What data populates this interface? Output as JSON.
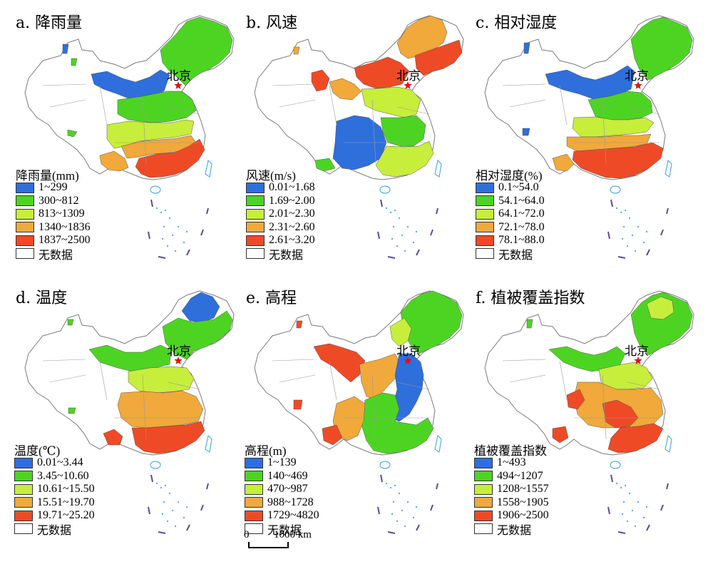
{
  "colors": {
    "blue": "#2e6fdc",
    "green": "#4dd423",
    "yellowgreen": "#c7ee3b",
    "orange": "#f0a93a",
    "red": "#ef4a26",
    "nodata": "#ffffff",
    "border": "#7a7a7a",
    "sea_islands": "#5ab0e8",
    "star": "#e01010"
  },
  "capital": {
    "label": "北京",
    "icon": "star-icon"
  },
  "panels": [
    {
      "title": "a. 降雨量",
      "legend_title": "降雨量(mm)",
      "classes": [
        {
          "label": "1~299",
          "color": "blue"
        },
        {
          "label": "300~812",
          "color": "green"
        },
        {
          "label": "813~1309",
          "color": "yellowgreen"
        },
        {
          "label": "1340~1836",
          "color": "orange"
        },
        {
          "label": "1837~2500",
          "color": "red"
        },
        {
          "label": "无数据",
          "color": "nodata"
        }
      ]
    },
    {
      "title": "b. 风速",
      "legend_title": "风速(m/s)",
      "classes": [
        {
          "label": "0.01~1.68",
          "color": "blue"
        },
        {
          "label": "1.69~2.00",
          "color": "green"
        },
        {
          "label": "2.01~2.30",
          "color": "yellowgreen"
        },
        {
          "label": "2.31~2.60",
          "color": "orange"
        },
        {
          "label": "2.61~3.20",
          "color": "red"
        },
        {
          "label": "无数据",
          "color": "nodata"
        }
      ]
    },
    {
      "title": "c. 相对湿度",
      "legend_title": "相对湿度(%)",
      "classes": [
        {
          "label": "0.1~54.0",
          "color": "blue"
        },
        {
          "label": "54.1~64.0",
          "color": "green"
        },
        {
          "label": "64.1~72.0",
          "color": "yellowgreen"
        },
        {
          "label": "72.1~78.0",
          "color": "orange"
        },
        {
          "label": "78.1~88.0",
          "color": "red"
        },
        {
          "label": "无数据",
          "color": "nodata"
        }
      ]
    },
    {
      "title": "d. 温度",
      "legend_title": "温度(℃)",
      "classes": [
        {
          "label": "0.01~3.44",
          "color": "blue"
        },
        {
          "label": "3.45~10.60",
          "color": "green"
        },
        {
          "label": "10.61~15.50",
          "color": "yellowgreen"
        },
        {
          "label": "15.51~19.70",
          "color": "orange"
        },
        {
          "label": "19.71~25.20",
          "color": "red"
        },
        {
          "label": "无数据",
          "color": "nodata"
        }
      ]
    },
    {
      "title": "e. 高程",
      "legend_title": "高程(m)",
      "classes": [
        {
          "label": "1~139",
          "color": "blue"
        },
        {
          "label": "140~469",
          "color": "green"
        },
        {
          "label": "470~987",
          "color": "yellowgreen"
        },
        {
          "label": "988~1728",
          "color": "orange"
        },
        {
          "label": "1729~4820",
          "color": "red"
        },
        {
          "label": "无数据",
          "color": "nodata"
        }
      ]
    },
    {
      "title": "f. 植被覆盖指数",
      "legend_title": "植被覆盖指数",
      "classes": [
        {
          "label": "1~493",
          "color": "blue"
        },
        {
          "label": "494~1207",
          "color": "green"
        },
        {
          "label": "1208~1557",
          "color": "yellowgreen"
        },
        {
          "label": "1558~1905",
          "color": "orange"
        },
        {
          "label": "1906~2500",
          "color": "red"
        },
        {
          "label": "无数据",
          "color": "nodata"
        }
      ]
    }
  ],
  "scalebar": {
    "start_label": "0",
    "end_label": "1000 km"
  }
}
